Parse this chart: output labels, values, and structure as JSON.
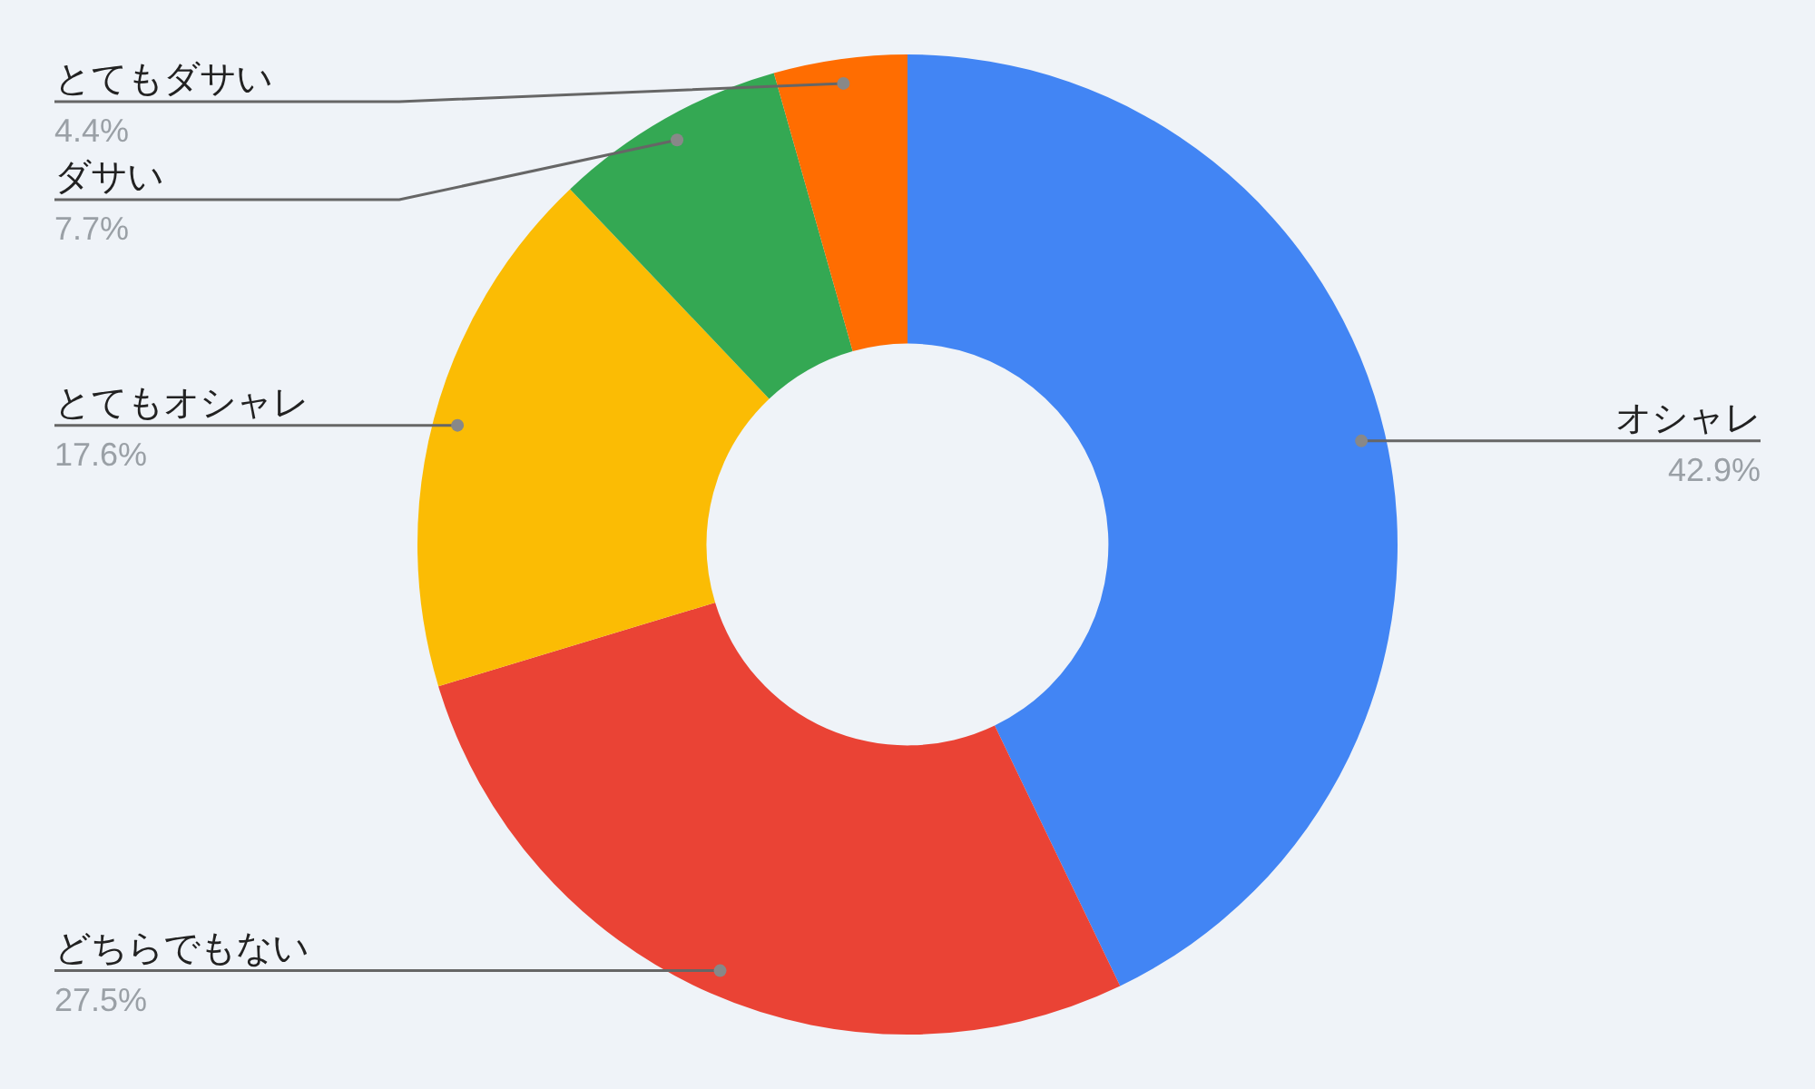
{
  "chart_data": {
    "type": "donut",
    "categories": [
      "オシャレ",
      "どちらでもない",
      "とてもオシャレ",
      "ダサい",
      "とてもダサい"
    ],
    "values": [
      42.9,
      27.5,
      17.6,
      7.7,
      4.4
    ],
    "value_labels": [
      "42.9%",
      "27.5%",
      "17.6%",
      "7.7%",
      "4.4%"
    ],
    "colors": [
      "#4285f4",
      "#ea4335",
      "#fbbc04",
      "#34a853",
      "#ff6d01"
    ],
    "legend": false
  }
}
